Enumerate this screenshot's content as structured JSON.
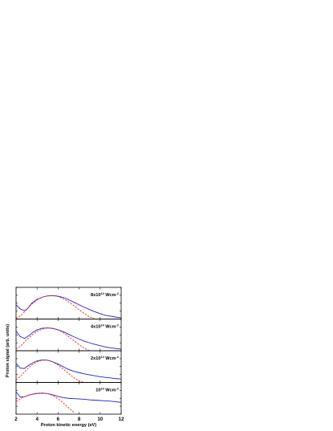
{
  "chart_data": {
    "type": "line",
    "xlabel": "Proton kinetic energy (eV)",
    "ylabel": "Proton signal (arb. units)",
    "xlim": [
      2,
      12
    ],
    "x_ticks": [
      "2",
      "4",
      "6",
      "8",
      "10",
      "12"
    ],
    "colors": {
      "measured": "#1f1fd6",
      "fit": "#e8250c"
    },
    "panels": [
      {
        "label_base": "8x10",
        "label_exp": "14",
        "label_unit": " Wcm",
        "label_unit_exp": "-2",
        "ylim": [
          0,
          1
        ],
        "series": [
          {
            "style": "solid",
            "x": [
              2.0,
              2.4,
              2.8,
              3.1,
              3.5,
              4.0,
              4.5,
              5.0,
              5.5,
              6.0,
              6.5,
              7.0,
              7.5,
              8.0,
              8.5,
              9.0,
              9.5,
              10.0,
              10.5,
              11.0,
              11.5,
              12.0
            ],
            "y": [
              0.45,
              0.32,
              0.26,
              0.33,
              0.5,
              0.62,
              0.69,
              0.73,
              0.74,
              0.72,
              0.68,
              0.61,
              0.53,
              0.45,
              0.37,
              0.3,
              0.23,
              0.17,
              0.12,
              0.09,
              0.06,
              0.04
            ]
          },
          {
            "style": "dashed",
            "x": [
              2.0,
              2.5,
              3.0,
              3.5,
              4.0,
              4.5,
              5.0,
              5.5,
              6.0,
              6.5,
              7.0,
              7.5,
              8.0,
              8.5,
              9.0,
              9.5
            ],
            "y": [
              0.02,
              0.12,
              0.3,
              0.47,
              0.6,
              0.69,
              0.73,
              0.74,
              0.71,
              0.64,
              0.54,
              0.42,
              0.29,
              0.17,
              0.07,
              0.0
            ]
          }
        ]
      },
      {
        "label_base": "4x10",
        "label_exp": "14",
        "label_unit": " Wcm",
        "label_unit_exp": "-2",
        "ylim": [
          0,
          1
        ],
        "series": [
          {
            "style": "solid",
            "x": [
              2.0,
              2.4,
              2.8,
              3.2,
              3.6,
              4.0,
              4.5,
              5.0,
              5.5,
              6.0,
              6.5,
              7.0,
              7.5,
              8.0,
              8.5,
              9.0,
              9.5,
              10.0,
              10.5,
              11.0,
              11.5,
              12.0
            ],
            "y": [
              0.62,
              0.45,
              0.39,
              0.47,
              0.58,
              0.66,
              0.71,
              0.72,
              0.7,
              0.66,
              0.6,
              0.52,
              0.44,
              0.37,
              0.3,
              0.25,
              0.2,
              0.16,
              0.12,
              0.09,
              0.07,
              0.05
            ]
          },
          {
            "style": "dashed",
            "x": [
              2.0,
              2.5,
              3.0,
              3.5,
              4.0,
              4.5,
              5.0,
              5.5,
              6.0,
              6.5,
              7.0,
              7.5,
              8.0,
              8.5,
              9.0
            ],
            "y": [
              0.05,
              0.17,
              0.34,
              0.49,
              0.61,
              0.68,
              0.72,
              0.71,
              0.66,
              0.57,
              0.45,
              0.32,
              0.19,
              0.08,
              0.0
            ]
          }
        ]
      },
      {
        "label_base": "2x10",
        "label_exp": "14",
        "label_unit": " Wcm",
        "label_unit_exp": "-2",
        "ylim": [
          0,
          1
        ],
        "series": [
          {
            "style": "solid",
            "x": [
              2.0,
              2.4,
              2.8,
              3.2,
              3.6,
              4.0,
              4.5,
              5.0,
              5.5,
              6.0,
              6.5,
              7.0,
              7.5,
              8.0,
              8.5,
              9.0,
              9.5,
              10.0,
              10.5,
              11.0,
              11.5,
              12.0
            ],
            "y": [
              0.6,
              0.45,
              0.44,
              0.54,
              0.62,
              0.68,
              0.71,
              0.7,
              0.65,
              0.58,
              0.49,
              0.41,
              0.35,
              0.31,
              0.27,
              0.24,
              0.21,
              0.18,
              0.16,
              0.14,
              0.12,
              0.11
            ]
          },
          {
            "style": "dashed",
            "x": [
              2.0,
              2.5,
              3.0,
              3.5,
              4.0,
              4.5,
              5.0,
              5.5,
              6.0,
              6.5,
              7.0,
              7.5,
              8.0,
              8.5
            ],
            "y": [
              0.08,
              0.22,
              0.4,
              0.55,
              0.65,
              0.7,
              0.7,
              0.65,
              0.55,
              0.42,
              0.28,
              0.15,
              0.05,
              0.0
            ]
          }
        ]
      },
      {
        "label_base": "10",
        "label_exp": "14",
        "label_unit": " Wcm",
        "label_unit_exp": "-2",
        "ylim": [
          0,
          1
        ],
        "series": [
          {
            "style": "solid",
            "x": [
              2.0,
              2.4,
              2.8,
              3.2,
              3.6,
              4.0,
              4.5,
              5.0,
              5.5,
              6.0,
              6.5,
              7.0,
              7.5,
              8.0,
              8.5,
              9.0,
              9.5,
              10.0,
              10.5,
              11.0,
              11.5,
              12.0
            ],
            "y": [
              0.7,
              0.54,
              0.55,
              0.6,
              0.63,
              0.65,
              0.66,
              0.65,
              0.61,
              0.56,
              0.52,
              0.5,
              0.49,
              0.48,
              0.47,
              0.45,
              0.44,
              0.43,
              0.42,
              0.41,
              0.39,
              0.37
            ]
          },
          {
            "style": "dashed",
            "x": [
              2.0,
              2.5,
              3.0,
              3.5,
              4.0,
              4.5,
              5.0,
              5.5,
              6.0,
              6.5,
              7.0,
              7.5
            ],
            "y": [
              0.4,
              0.5,
              0.58,
              0.63,
              0.66,
              0.67,
              0.65,
              0.59,
              0.48,
              0.35,
              0.2,
              0.06
            ]
          }
        ]
      }
    ]
  }
}
